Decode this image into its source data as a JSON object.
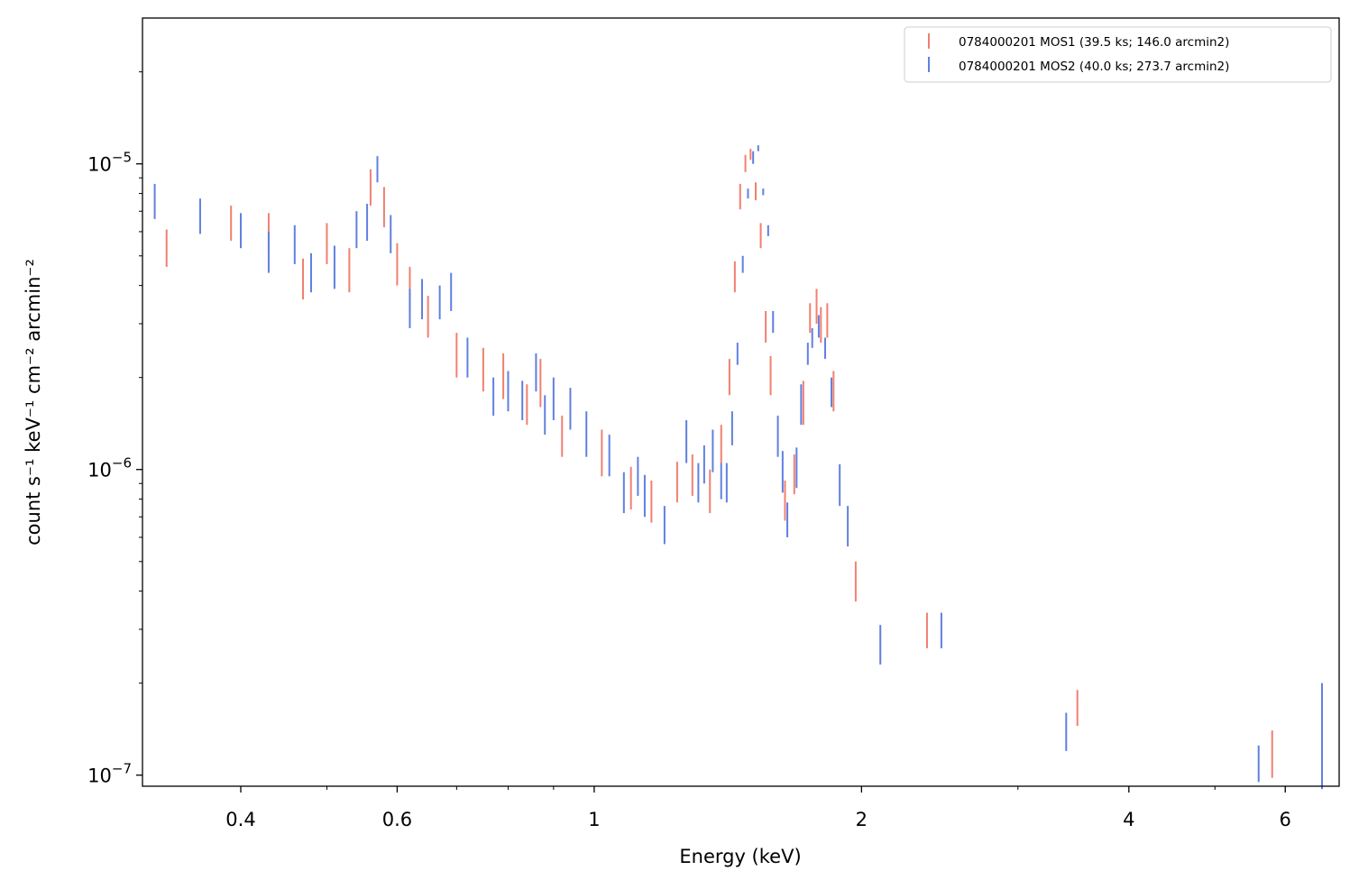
{
  "chart_data": {
    "type": "scatter",
    "title": "",
    "xlabel": "Energy (keV)",
    "ylabel": "count s⁻¹ keV⁻¹ cm⁻² arcmin⁻²",
    "xscale": "log",
    "yscale": "log",
    "xlim": [
      0.31,
      6.9
    ],
    "ylim": [
      9.2e-08,
      3e-05
    ],
    "xticks": [
      {
        "value": 0.4,
        "label": "0.4"
      },
      {
        "value": 0.6,
        "label": "0.6"
      },
      {
        "value": 1,
        "label": "1"
      },
      {
        "value": 2,
        "label": "2"
      },
      {
        "value": 4,
        "label": "4"
      },
      {
        "value": 6,
        "label": "6"
      }
    ],
    "yticks": [
      {
        "value": 1e-07,
        "base": "10",
        "exp": "−7"
      },
      {
        "value": 1e-06,
        "base": "10",
        "exp": "−6"
      },
      {
        "value": 1e-05,
        "base": "10",
        "exp": "−5"
      }
    ],
    "grid": false,
    "legend_position": "top-right",
    "series": [
      {
        "name": "0784000201 MOS1 (39.5 ks; 146.0 arcmin2)",
        "color": "#f08070",
        "points": [
          [
            0.33,
            4.6e-06,
            6.1e-06
          ],
          [
            0.39,
            5.6e-06,
            7.3e-06
          ],
          [
            0.43,
            5.2e-06,
            6.9e-06
          ],
          [
            0.47,
            3.6e-06,
            4.9e-06
          ],
          [
            0.5,
            4.7e-06,
            6.4e-06
          ],
          [
            0.53,
            3.8e-06,
            5.3e-06
          ],
          [
            0.56,
            7.3e-06,
            9.6e-06
          ],
          [
            0.58,
            6.2e-06,
            8.4e-06
          ],
          [
            0.6,
            4e-06,
            5.5e-06
          ],
          [
            0.62,
            3.3e-06,
            4.6e-06
          ],
          [
            0.65,
            2.7e-06,
            3.7e-06
          ],
          [
            0.7,
            2e-06,
            2.8e-06
          ],
          [
            0.75,
            1.8e-06,
            2.5e-06
          ],
          [
            0.79,
            1.7e-06,
            2.4e-06
          ],
          [
            0.84,
            1.4e-06,
            1.9e-06
          ],
          [
            0.87,
            1.6e-06,
            2.3e-06
          ],
          [
            0.92,
            1.1e-06,
            1.5e-06
          ],
          [
            1.02,
            9.5e-07,
            1.35e-06
          ],
          [
            1.1,
            7.4e-07,
            1.02e-06
          ],
          [
            1.16,
            6.7e-07,
            9.2e-07
          ],
          [
            1.24,
            7.8e-07,
            1.06e-06
          ],
          [
            1.29,
            8.2e-07,
            1.12e-06
          ],
          [
            1.35,
            7.2e-07,
            1e-06
          ],
          [
            1.39,
            1.05e-06,
            1.4e-06
          ],
          [
            1.42,
            1.75e-06,
            2.3e-06
          ],
          [
            1.44,
            3.8e-06,
            4.8e-06
          ],
          [
            1.46,
            7.1e-06,
            8.6e-06
          ],
          [
            1.48,
            9.4e-06,
            1.07e-05
          ],
          [
            1.5,
            1.03e-05,
            1.12e-05
          ],
          [
            1.52,
            7.6e-06,
            8.7e-06
          ],
          [
            1.54,
            5.3e-06,
            6.4e-06
          ],
          [
            1.56,
            2.6e-06,
            3.3e-06
          ],
          [
            1.58,
            1.75e-06,
            2.35e-06
          ],
          [
            1.64,
            6.8e-07,
            9.2e-07
          ],
          [
            1.68,
            8.3e-07,
            1.12e-06
          ],
          [
            1.72,
            1.4e-06,
            1.95e-06
          ],
          [
            1.75,
            2.8e-06,
            3.5e-06
          ],
          [
            1.78,
            3e-06,
            3.9e-06
          ],
          [
            1.8,
            2.6e-06,
            3.4e-06
          ],
          [
            1.83,
            2.7e-06,
            3.5e-06
          ],
          [
            1.86,
            1.55e-06,
            2.1e-06
          ],
          [
            1.97,
            3.7e-07,
            5e-07
          ],
          [
            2.37,
            2.6e-07,
            3.4e-07
          ],
          [
            3.5,
            1.45e-07,
            1.9e-07
          ],
          [
            5.8,
            9.8e-08,
            1.4e-07
          ]
        ]
      },
      {
        "name": "0784000201 MOS2 (40.0 ks; 273.7 arcmin2)",
        "color": "#6080e0",
        "points": [
          [
            0.32,
            6.6e-06,
            8.6e-06
          ],
          [
            0.36,
            5.9e-06,
            7.7e-06
          ],
          [
            0.4,
            5.3e-06,
            6.9e-06
          ],
          [
            0.43,
            4.4e-06,
            6e-06
          ],
          [
            0.46,
            4.7e-06,
            6.3e-06
          ],
          [
            0.48,
            3.8e-06,
            5.1e-06
          ],
          [
            0.51,
            3.9e-06,
            5.4e-06
          ],
          [
            0.54,
            5.3e-06,
            7e-06
          ],
          [
            0.555,
            5.6e-06,
            7.4e-06
          ],
          [
            0.57,
            8.7e-06,
            1.06e-05
          ],
          [
            0.59,
            5.1e-06,
            6.8e-06
          ],
          [
            0.62,
            2.9e-06,
            3.9e-06
          ],
          [
            0.64,
            3.1e-06,
            4.2e-06
          ],
          [
            0.67,
            3.1e-06,
            4e-06
          ],
          [
            0.69,
            3.3e-06,
            4.4e-06
          ],
          [
            0.72,
            2e-06,
            2.7e-06
          ],
          [
            0.77,
            1.5e-06,
            2e-06
          ],
          [
            0.8,
            1.55e-06,
            2.1e-06
          ],
          [
            0.83,
            1.45e-06,
            1.95e-06
          ],
          [
            0.86,
            1.8e-06,
            2.4e-06
          ],
          [
            0.88,
            1.3e-06,
            1.75e-06
          ],
          [
            0.9,
            1.45e-06,
            2e-06
          ],
          [
            0.94,
            1.35e-06,
            1.85e-06
          ],
          [
            0.98,
            1.1e-06,
            1.55e-06
          ],
          [
            1.04,
            9.5e-07,
            1.3e-06
          ],
          [
            1.08,
            7.2e-07,
            9.8e-07
          ],
          [
            1.12,
            8.2e-07,
            1.1e-06
          ],
          [
            1.14,
            7e-07,
            9.6e-07
          ],
          [
            1.2,
            5.7e-07,
            7.6e-07
          ],
          [
            1.27,
            1.05e-06,
            1.45e-06
          ],
          [
            1.31,
            7.8e-07,
            1.05e-06
          ],
          [
            1.33,
            9e-07,
            1.2e-06
          ],
          [
            1.36,
            9.8e-07,
            1.35e-06
          ],
          [
            1.39,
            8e-07,
            1.05e-06
          ],
          [
            1.41,
            7.8e-07,
            1.05e-06
          ],
          [
            1.43,
            1.2e-06,
            1.55e-06
          ],
          [
            1.45,
            2.2e-06,
            2.6e-06
          ],
          [
            1.47,
            4.4e-06,
            5e-06
          ],
          [
            1.49,
            7.7e-06,
            8.3e-06
          ],
          [
            1.51,
            1e-05,
            1.1e-05
          ],
          [
            1.53,
            1.1e-05,
            1.15e-05
          ],
          [
            1.55,
            7.9e-06,
            8.3e-06
          ],
          [
            1.57,
            5.8e-06,
            6.3e-06
          ],
          [
            1.59,
            2.8e-06,
            3.3e-06
          ],
          [
            1.61,
            1.1e-06,
            1.5e-06
          ],
          [
            1.63,
            8.4e-07,
            1.15e-06
          ],
          [
            1.65,
            6e-07,
            7.8e-07
          ],
          [
            1.69,
            8.7e-07,
            1.18e-06
          ],
          [
            1.71,
            1.4e-06,
            1.9e-06
          ],
          [
            1.74,
            2.2e-06,
            2.6e-06
          ],
          [
            1.76,
            2.5e-06,
            2.9e-06
          ],
          [
            1.79,
            2.7e-06,
            3.2e-06
          ],
          [
            1.82,
            2.3e-06,
            2.7e-06
          ],
          [
            1.85,
            1.6e-06,
            2e-06
          ],
          [
            1.89,
            7.6e-07,
            1.04e-06
          ],
          [
            1.93,
            5.6e-07,
            7.6e-07
          ],
          [
            2.1,
            2.3e-07,
            3.1e-07
          ],
          [
            2.46,
            2.6e-07,
            3.4e-07
          ],
          [
            3.4,
            1.2e-07,
            1.6e-07
          ],
          [
            5.6,
            9.5e-08,
            1.25e-07
          ],
          [
            6.6,
            9e-08,
            2e-07
          ]
        ]
      }
    ]
  }
}
